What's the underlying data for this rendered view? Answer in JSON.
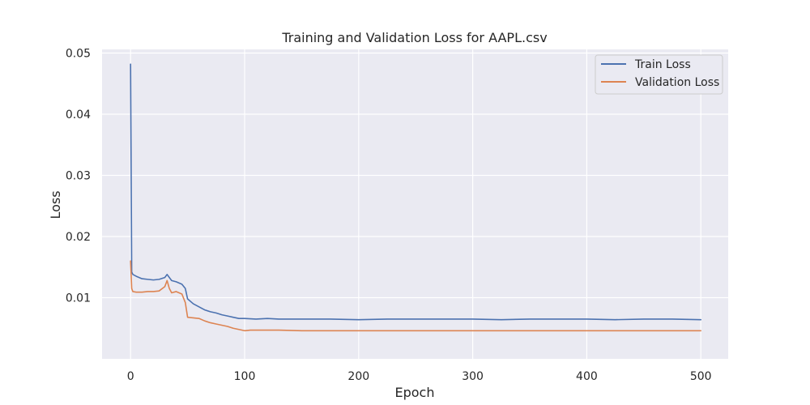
{
  "chart_data": {
    "type": "line",
    "title": "Training and Validation Loss for AAPL.csv",
    "xlabel": "Epoch",
    "ylabel": "Loss",
    "xlim": [
      -25,
      524
    ],
    "ylim": [
      0.0,
      0.0506
    ],
    "xticks": [
      0,
      100,
      200,
      300,
      400,
      500
    ],
    "xtick_labels": [
      "0",
      "100",
      "200",
      "300",
      "400",
      "500"
    ],
    "yticks": [
      0.01,
      0.02,
      0.03,
      0.04,
      0.05
    ],
    "ytick_labels": [
      "0.01",
      "0.02",
      "0.03",
      "0.04",
      "0.05"
    ],
    "grid": true,
    "legend_position": "top-right",
    "background": "#eaeaf2",
    "series": [
      {
        "name": "Train Loss",
        "color": "#4c72b0",
        "x": [
          0,
          1,
          2,
          5,
          10,
          15,
          20,
          25,
          30,
          32,
          34,
          36,
          40,
          45,
          48,
          50,
          55,
          60,
          65,
          70,
          75,
          80,
          85,
          90,
          95,
          100,
          110,
          120,
          130,
          140,
          150,
          175,
          200,
          225,
          250,
          275,
          300,
          325,
          350,
          375,
          400,
          425,
          450,
          475,
          500
        ],
        "y": [
          0.0482,
          0.0142,
          0.0138,
          0.0135,
          0.0131,
          0.013,
          0.0129,
          0.013,
          0.0133,
          0.0138,
          0.0133,
          0.0128,
          0.0126,
          0.0122,
          0.0115,
          0.0098,
          0.009,
          0.0085,
          0.008,
          0.0077,
          0.0075,
          0.0072,
          0.007,
          0.0068,
          0.0066,
          0.0066,
          0.0065,
          0.0066,
          0.0065,
          0.0065,
          0.0065,
          0.0065,
          0.0064,
          0.0065,
          0.0065,
          0.0065,
          0.0065,
          0.0064,
          0.0065,
          0.0065,
          0.0065,
          0.0064,
          0.0065,
          0.0065,
          0.0064
        ]
      },
      {
        "name": "Validation Loss",
        "color": "#dd8452",
        "x": [
          0,
          1,
          2,
          5,
          10,
          15,
          20,
          25,
          30,
          32,
          34,
          36,
          40,
          45,
          48,
          50,
          55,
          60,
          65,
          70,
          75,
          80,
          85,
          90,
          95,
          100,
          105,
          110,
          130,
          150,
          175,
          200,
          250,
          300,
          350,
          400,
          450,
          500
        ],
        "y": [
          0.016,
          0.0115,
          0.011,
          0.0109,
          0.0109,
          0.011,
          0.011,
          0.0111,
          0.0118,
          0.0128,
          0.0115,
          0.0108,
          0.011,
          0.0106,
          0.0092,
          0.0068,
          0.0067,
          0.0066,
          0.0062,
          0.0059,
          0.0057,
          0.0055,
          0.0053,
          0.005,
          0.0048,
          0.0046,
          0.0047,
          0.0047,
          0.0047,
          0.0046,
          0.0046,
          0.0046,
          0.0046,
          0.0046,
          0.0046,
          0.0046,
          0.0046,
          0.0046
        ]
      }
    ]
  }
}
